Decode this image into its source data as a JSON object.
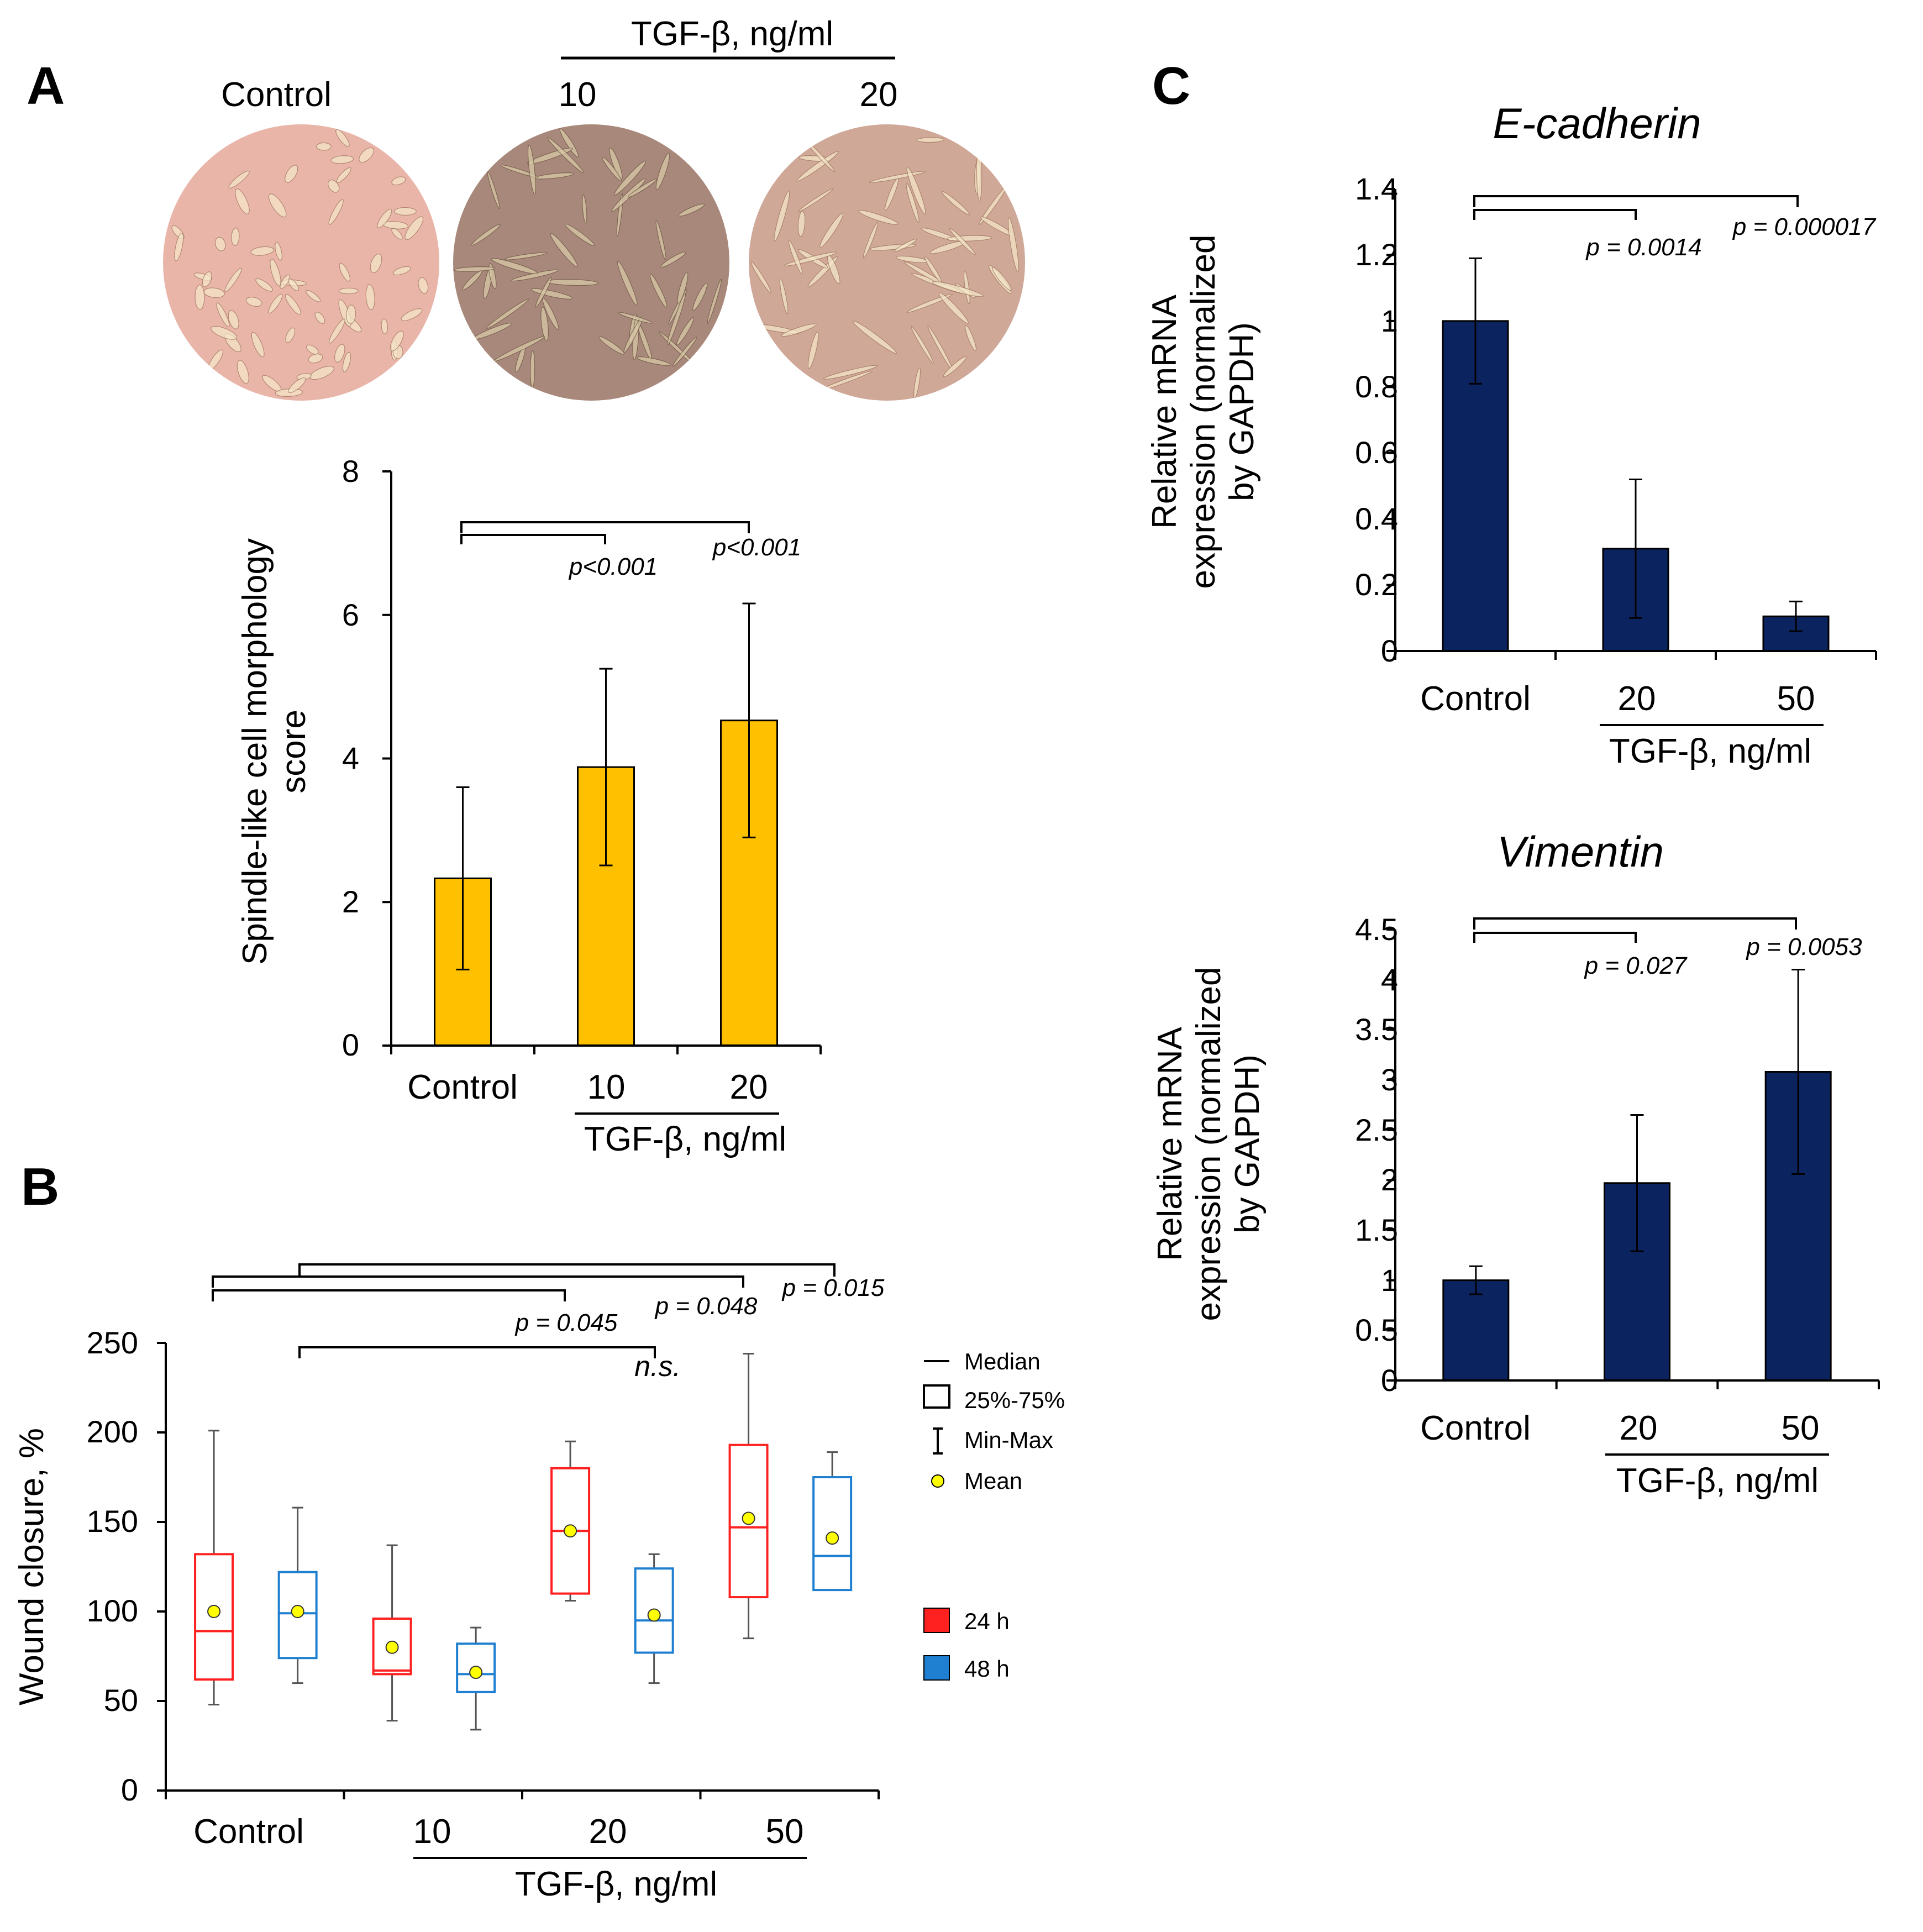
{
  "panel_labels": [
    "A",
    "B",
    "C"
  ],
  "micrographs": {
    "header": "TGF-β, ng/ml",
    "labels": [
      "Control",
      "10",
      "20"
    ],
    "colors": [
      "#e9b5a9",
      "#a8887a",
      "#cfa898"
    ]
  },
  "colors": {
    "orange_bar": "#ffc000",
    "navy_bar": "#0b2460",
    "box_24h": "#ff2020",
    "box_48h": "#1f7fd1",
    "mean_dot": "#ffff00"
  },
  "chart_data": [
    {
      "id": "A",
      "type": "bar",
      "title": "",
      "categories": [
        "Control",
        "10",
        "20"
      ],
      "values": [
        2.33,
        3.88,
        4.53
      ],
      "errors": [
        1.27,
        1.37,
        1.63
      ],
      "ylim": [
        0,
        8
      ],
      "yticks": [
        "0",
        "2",
        "4",
        "6",
        "8"
      ],
      "ylabel_lines": [
        "Spindle-like cell morphology",
        "score"
      ],
      "xgroup_label": "TGF-β, ng/ml",
      "pvalues": [
        "p<0.001",
        "p<0.001"
      ]
    },
    {
      "id": "B",
      "type": "boxplot",
      "categories": [
        "Control",
        "10",
        "20",
        "50"
      ],
      "series": [
        {
          "name": "24 h",
          "boxes": [
            {
              "min": 48,
              "q1": 62,
              "median": 89,
              "q3": 132,
              "max": 201,
              "mean": 100
            },
            {
              "min": 39,
              "q1": 65,
              "median": 67,
              "q3": 96,
              "max": 137,
              "mean": 80
            },
            {
              "min": 106,
              "q1": 110,
              "median": 145,
              "q3": 180,
              "max": 195,
              "mean": 145
            },
            {
              "min": 85,
              "q1": 108,
              "median": 147,
              "q3": 193,
              "max": 244,
              "mean": 152
            }
          ]
        },
        {
          "name": "48 h",
          "boxes": [
            {
              "min": 60,
              "q1": 74,
              "median": 99,
              "q3": 122,
              "max": 158,
              "mean": 100
            },
            {
              "min": 34,
              "q1": 55,
              "median": 65,
              "q3": 82,
              "max": 91,
              "mean": 66
            },
            {
              "min": 60,
              "q1": 77,
              "median": 95,
              "q3": 124,
              "max": 132,
              "mean": 98
            },
            {
              "min": 112,
              "q1": 112,
              "median": 131,
              "q3": 175,
              "max": 189,
              "mean": 141
            }
          ]
        }
      ],
      "ylim": [
        0,
        250
      ],
      "yticks": [
        "0",
        "50",
        "100",
        "150",
        "200",
        "250"
      ],
      "ylabel": "Wound closure, %",
      "xgroup_label": "TGF-β, ng/ml",
      "pvalues": [
        "p = 0.045",
        "p = 0.048",
        "p = 0.015",
        "n.s."
      ],
      "legend": {
        "median": "Median",
        "box": "25%-75%",
        "whisker": "Min-Max",
        "mean": "Mean",
        "series": [
          "24 h",
          "48 h"
        ]
      }
    },
    {
      "id": "C1",
      "type": "bar",
      "title": "E-cadherin",
      "categories": [
        "Control",
        "20",
        "50"
      ],
      "values": [
        1.0,
        0.31,
        0.105
      ],
      "errors": [
        0.19,
        0.21,
        0.045
      ],
      "ylim": [
        0,
        1.4
      ],
      "yticks": [
        "0",
        "0.2",
        "0.4",
        "0.6",
        "0.8",
        "1",
        "1.2",
        "1.4"
      ],
      "ylabel_lines": [
        "Relative mRNA",
        "expression (normalized",
        "by GAPDH)"
      ],
      "xgroup_label": "TGF-β, ng/ml",
      "pvalues": [
        "p = 0.0014",
        "p = 0.000017"
      ]
    },
    {
      "id": "C2",
      "type": "bar",
      "title": "Vimentin",
      "categories": [
        "Control",
        "20",
        "50"
      ],
      "values": [
        1.0,
        1.97,
        3.08
      ],
      "errors": [
        0.14,
        0.68,
        1.02
      ],
      "ylim": [
        0,
        4.5
      ],
      "yticks": [
        "0",
        "0.5",
        "1",
        "1.5",
        "2",
        "2.5",
        "3",
        "3.5",
        "4",
        "4.5"
      ],
      "ylabel_lines": [
        "Relative mRNA",
        "expression (normalized",
        "by GAPDH)"
      ],
      "xgroup_label": "TGF-β, ng/ml",
      "pvalues": [
        "p = 0.027",
        "p = 0.0053"
      ]
    }
  ]
}
